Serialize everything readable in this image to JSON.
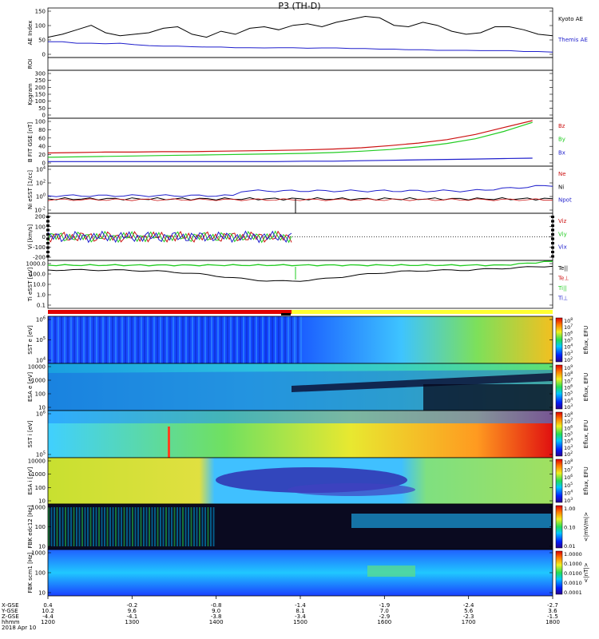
{
  "title": "P3 (TH-D)",
  "colors": {
    "black": "#000000",
    "blue": "#1f1fcc",
    "red": "#cc1111",
    "green": "#22cc22",
    "dark": "#0a0a20"
  },
  "chart_data": [
    {
      "type": "line",
      "panel": "AE Index",
      "ylabel": "AE Index",
      "ylim": [
        0,
        150
      ],
      "yticks": [
        "150",
        "100",
        "50",
        "0"
      ],
      "series": [
        {
          "name": "Kyoto AE",
          "color": "black",
          "values": [
            60,
            70,
            85,
            100,
            75,
            65,
            70,
            75,
            90,
            95,
            70,
            60,
            80,
            70,
            90,
            95,
            85,
            100,
            105,
            95,
            110,
            120,
            130,
            125,
            100,
            95,
            110,
            100,
            80,
            70,
            75,
            95,
            95,
            85,
            70,
            65
          ]
        },
        {
          "name": "Themis AE",
          "color": "blue",
          "values": [
            45,
            45,
            40,
            40,
            38,
            40,
            35,
            32,
            30,
            30,
            28,
            27,
            27,
            25,
            25,
            24,
            25,
            25,
            23,
            24,
            24,
            22,
            22,
            20,
            20,
            18,
            18,
            16,
            16,
            16,
            15,
            15,
            15,
            12,
            12,
            10
          ]
        }
      ]
    },
    {
      "type": "line",
      "panel": "ROI",
      "ylabel": "ROI",
      "series": []
    },
    {
      "type": "line",
      "panel": "Kpgram",
      "ylabel": "Kpgram",
      "ylim": [
        0,
        300
      ],
      "yticks": [
        "300",
        "250",
        "200",
        "150",
        "100",
        "50",
        "0"
      ],
      "series": []
    },
    {
      "type": "line",
      "panel": "B FIT GSE",
      "ylabel": "B FIT GSE [nT]",
      "ylim": [
        0,
        100
      ],
      "yticks": [
        "100",
        "80",
        "60",
        "40",
        "20",
        "0"
      ],
      "series": [
        {
          "name": "Bz",
          "color": "red",
          "values": [
            25,
            26,
            27,
            27,
            28,
            28,
            29,
            30,
            31,
            32,
            34,
            37,
            42,
            48,
            56,
            68,
            84,
            100
          ]
        },
        {
          "name": "By",
          "color": "green",
          "values": [
            15,
            16,
            17,
            18,
            19,
            20,
            21,
            22,
            23,
            24,
            26,
            29,
            33,
            39,
            47,
            58,
            75,
            96
          ]
        },
        {
          "name": "Bx",
          "color": "blue",
          "values": [
            5,
            5,
            5,
            5,
            5,
            5,
            5,
            5,
            5,
            6,
            6,
            7,
            8,
            9,
            10,
            11,
            12,
            13
          ]
        }
      ]
    },
    {
      "type": "line",
      "panel": "Ni",
      "ylabel": "Ni eSST [1/cc]",
      "yticks": [
        "10^4",
        "10^2",
        "10^0",
        "10^-2"
      ],
      "series": [
        {
          "name": "Ne",
          "color": "red"
        },
        {
          "name": "Ni",
          "color": "black"
        },
        {
          "name": "Npot",
          "color": "blue"
        }
      ]
    },
    {
      "type": "line",
      "panel": "Vi",
      "ylabel": "Vi [km/s]",
      "ylim": [
        -200,
        200
      ],
      "yticks": [
        "200",
        "100",
        "0",
        "-100",
        "-200"
      ],
      "series": [
        {
          "name": "Viz",
          "color": "red"
        },
        {
          "name": "Viy",
          "color": "green"
        },
        {
          "name": "Vix",
          "color": "blue"
        }
      ]
    },
    {
      "type": "line",
      "panel": "Ti",
      "ylabel": "Ti eSST [eV]",
      "yticks": [
        "1000.0",
        "100.0",
        "10.0",
        "1.0",
        "0.1"
      ],
      "series": [
        {
          "name": "Te||",
          "color": "black"
        },
        {
          "name": "Te⊥",
          "color": "red"
        },
        {
          "name": "Ti||",
          "color": "green"
        },
        {
          "name": "Ti⊥",
          "color": "blue"
        }
      ]
    },
    {
      "type": "heatmap",
      "panel": "SST e",
      "ylabel": "SST e [eV]",
      "yticks": [
        "10^6",
        "10^5",
        "10^4"
      ],
      "colorbar_label": "Eflux, EFU",
      "colorbar_ticks": [
        "10^8",
        "10^7",
        "10^6",
        "10^5",
        "10^4",
        "10^3",
        "10^2"
      ]
    },
    {
      "type": "heatmap",
      "panel": "ESA e",
      "ylabel": "ESA e [eV]",
      "yticks": [
        "10000",
        "1000",
        "100",
        "10"
      ],
      "colorbar_label": "Eflux, EFU",
      "colorbar_ticks": [
        "10^9",
        "10^8",
        "10^7",
        "10^6",
        "10^5",
        "10^4",
        "10^3"
      ]
    },
    {
      "type": "heatmap",
      "panel": "SST i",
      "ylabel": "SST i [eV]",
      "yticks": [
        "10^6",
        "10^5"
      ],
      "colorbar_label": "Eflux, EFU",
      "colorbar_ticks": [
        "10^8",
        "10^7",
        "10^6",
        "10^5",
        "10^4",
        "10^3",
        "10^2"
      ]
    },
    {
      "type": "heatmap",
      "panel": "ESA i",
      "ylabel": "ESA i [eV]",
      "yticks": [
        "10000",
        "1000",
        "100",
        "10"
      ],
      "colorbar_label": "Eflux, EFU",
      "colorbar_ticks": [
        "10^8",
        "10^7",
        "10^6",
        "10^5",
        "10^4",
        "10^3"
      ]
    },
    {
      "type": "heatmap",
      "panel": "FBK edc12",
      "ylabel": "FBK edc12 [Hz]",
      "yticks": [
        "1000",
        "100",
        "10"
      ],
      "colorbar_label": "<|mV/m|>",
      "colorbar_ticks": [
        "1.00",
        "0.10",
        "0.01"
      ]
    },
    {
      "type": "heatmap",
      "panel": "FBK scm1",
      "ylabel": "FBK scm1 [Hz]",
      "yticks": [
        "1000",
        "100",
        "10"
      ],
      "colorbar_label": "<|nT|>",
      "colorbar_ticks": [
        "1.0000",
        "0.1000",
        "0.0100",
        "0.0010",
        "0.0001"
      ]
    }
  ],
  "xaxis": {
    "row_labels": [
      "X-GSE",
      "Y-GSE",
      "Z-GSE",
      "hhmm",
      "2018 Apr 10"
    ],
    "ticks": [
      {
        "x_gse": "0.4",
        "y_gse": "10.2",
        "z_gse": "-4.4",
        "hhmm": "1200"
      },
      {
        "x_gse": "-0.2",
        "y_gse": "9.6",
        "z_gse": "-4.1",
        "hhmm": "1300"
      },
      {
        "x_gse": "-0.8",
        "y_gse": "9.0",
        "z_gse": "-3.8",
        "hhmm": "1400"
      },
      {
        "x_gse": "-1.4",
        "y_gse": "8.1",
        "z_gse": "-3.4",
        "hhmm": "1500"
      },
      {
        "x_gse": "-1.9",
        "y_gse": "7.0",
        "z_gse": "-2.9",
        "hhmm": "1600"
      },
      {
        "x_gse": "-2.4",
        "y_gse": "5.6",
        "z_gse": "-2.3",
        "hhmm": "1700"
      },
      {
        "x_gse": "-2.7",
        "y_gse": "3.6",
        "z_gse": "-1.5",
        "hhmm": "1800"
      }
    ]
  }
}
